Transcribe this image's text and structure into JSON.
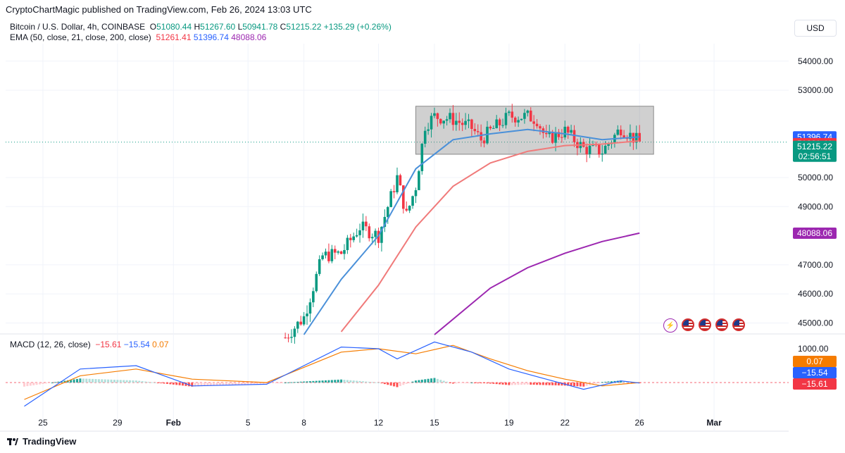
{
  "header": {
    "publisher_line": "CryptoChartMagic published on TradingView.com, Feb 26, 2024 13:03 UTC"
  },
  "symbol": {
    "name": "Bitcoin / U.S. Dollar, 4h, COINBASE",
    "o_label": "O",
    "o": "51080.44",
    "h_label": "H",
    "h": "51267.60",
    "l_label": "L",
    "l": "50941.78",
    "c_label": "C",
    "c": "51215.22",
    "change": "+135.29 (+0.26%)"
  },
  "ema_legend": {
    "label": "EMA (50, close, 21, close, 200, close)",
    "v50": "51261.41",
    "v21": "51396.74",
    "v200": "48088.06"
  },
  "macd_legend": {
    "label": "MACD (12, 26, close)",
    "hist": "−15.61",
    "macd": "−15.54",
    "signal": "0.07"
  },
  "currency": "USD",
  "footer": {
    "brand": "TradingView"
  },
  "icons": [
    "lightning-icon",
    "us-flag-icon",
    "us-flag-icon",
    "us-flag-icon",
    "us-flag-icon"
  ],
  "colors": {
    "up": "#089981",
    "down": "#f23645",
    "ema21": "#4a90d9",
    "ema50": "#f07a7a",
    "ema200": "#9c27b0",
    "macd": "#2962ff",
    "signal": "#f57c00",
    "box": "#9e9e9e"
  },
  "chart_data": {
    "type": "candlestick",
    "price_axis": {
      "ticks": [
        "54000.00",
        "53000.00",
        "50000.00",
        "49000.00",
        "47000.00",
        "46000.00",
        "45000.00"
      ],
      "range": [
        44600,
        54600
      ]
    },
    "price_labels": [
      {
        "name": "EMA 21",
        "value": "51396.74"
      },
      {
        "name": "EMA 50",
        "value": "51261.41"
      },
      {
        "name": "Last price",
        "value": "51215.22",
        "countdown": "02:56:51"
      },
      {
        "name": "EMA 200",
        "value": "48088.06"
      }
    ],
    "macd_axis": {
      "ticks": [
        "1000.00"
      ],
      "labels": [
        "0.07",
        "−15.54",
        "−15.61"
      ]
    },
    "x_ticks": [
      "25",
      "29",
      "Feb",
      "5",
      "8",
      "12",
      "15",
      "19",
      "22",
      "26",
      "Mar"
    ],
    "x_tick_dates": [
      "2024-01-25",
      "2024-01-29",
      "2024-02-01",
      "2024-02-05",
      "2024-02-08",
      "2024-02-12",
      "2024-02-15",
      "2024-02-19",
      "2024-02-22",
      "2024-02-26",
      "2024-03-01"
    ],
    "consolidation_box": {
      "from": "2024-02-14",
      "to": "2024-02-26",
      "top": 52450,
      "bottom": 50800
    },
    "candle_anchor_points": [
      [
        "2024-02-07",
        44500
      ],
      [
        "2024-02-08",
        45200
      ],
      [
        "2024-02-09",
        47300
      ],
      [
        "2024-02-10",
        47400
      ],
      [
        "2024-02-11",
        48300
      ],
      [
        "2024-02-12",
        48000
      ],
      [
        "2024-02-13",
        50000
      ],
      [
        "2024-02-13T12:00",
        48700
      ],
      [
        "2024-02-14",
        49700
      ],
      [
        "2024-02-14T12:00",
        51800
      ],
      [
        "2024-02-15",
        52100
      ],
      [
        "2024-02-16",
        52000
      ],
      [
        "2024-02-17",
        51700
      ],
      [
        "2024-02-17T12:00",
        51300
      ],
      [
        "2024-02-18",
        51600
      ],
      [
        "2024-02-19",
        52100
      ],
      [
        "2024-02-20",
        52100
      ],
      [
        "2024-02-20T12:00",
        52000
      ],
      [
        "2024-02-21",
        51300
      ],
      [
        "2024-02-22",
        51600
      ],
      [
        "2024-02-23",
        51000
      ],
      [
        "2024-02-24",
        50900
      ],
      [
        "2024-02-25",
        51700
      ],
      [
        "2024-02-26",
        51200
      ]
    ],
    "ema21": [
      [
        "2024-02-08",
        44600
      ],
      [
        "2024-02-10",
        46500
      ],
      [
        "2024-02-12",
        48000
      ],
      [
        "2024-02-14",
        50300
      ],
      [
        "2024-02-16",
        51300
      ],
      [
        "2024-02-18",
        51500
      ],
      [
        "2024-02-20",
        51650
      ],
      [
        "2024-02-22",
        51500
      ],
      [
        "2024-02-24",
        51300
      ],
      [
        "2024-02-26",
        51397
      ]
    ],
    "ema50": [
      [
        "2024-02-10",
        44700
      ],
      [
        "2024-02-12",
        46300
      ],
      [
        "2024-02-14",
        48300
      ],
      [
        "2024-02-16",
        49700
      ],
      [
        "2024-02-18",
        50500
      ],
      [
        "2024-02-20",
        50900
      ],
      [
        "2024-02-22",
        51100
      ],
      [
        "2024-02-24",
        51150
      ],
      [
        "2024-02-26",
        51261
      ]
    ],
    "ema200": [
      [
        "2024-02-15",
        44600
      ],
      [
        "2024-02-18",
        46200
      ],
      [
        "2024-02-20",
        46900
      ],
      [
        "2024-02-22",
        47400
      ],
      [
        "2024-02-24",
        47800
      ],
      [
        "2024-02-26",
        48088
      ]
    ],
    "macd_line": [
      [
        "2024-01-24",
        -700
      ],
      [
        "2024-01-27",
        400
      ],
      [
        "2024-01-30",
        500
      ],
      [
        "2024-02-02",
        -100
      ],
      [
        "2024-02-06",
        -50
      ],
      [
        "2024-02-10",
        1050
      ],
      [
        "2024-02-12",
        1000
      ],
      [
        "2024-02-13",
        700
      ],
      [
        "2024-02-15",
        1200
      ],
      [
        "2024-02-17",
        900
      ],
      [
        "2024-02-19",
        400
      ],
      [
        "2024-02-21",
        100
      ],
      [
        "2024-02-23",
        -200
      ],
      [
        "2024-02-25",
        50
      ],
      [
        "2024-02-26",
        -15.54
      ]
    ],
    "signal_line": [
      [
        "2024-01-24",
        -500
      ],
      [
        "2024-01-27",
        200
      ],
      [
        "2024-01-30",
        400
      ],
      [
        "2024-02-02",
        100
      ],
      [
        "2024-02-06",
        0
      ],
      [
        "2024-02-10",
        900
      ],
      [
        "2024-02-12",
        1000
      ],
      [
        "2024-02-14",
        850
      ],
      [
        "2024-02-16",
        1100
      ],
      [
        "2024-02-18",
        700
      ],
      [
        "2024-02-20",
        350
      ],
      [
        "2024-02-22",
        100
      ],
      [
        "2024-02-24",
        -100
      ],
      [
        "2024-02-26",
        0.07
      ]
    ]
  }
}
